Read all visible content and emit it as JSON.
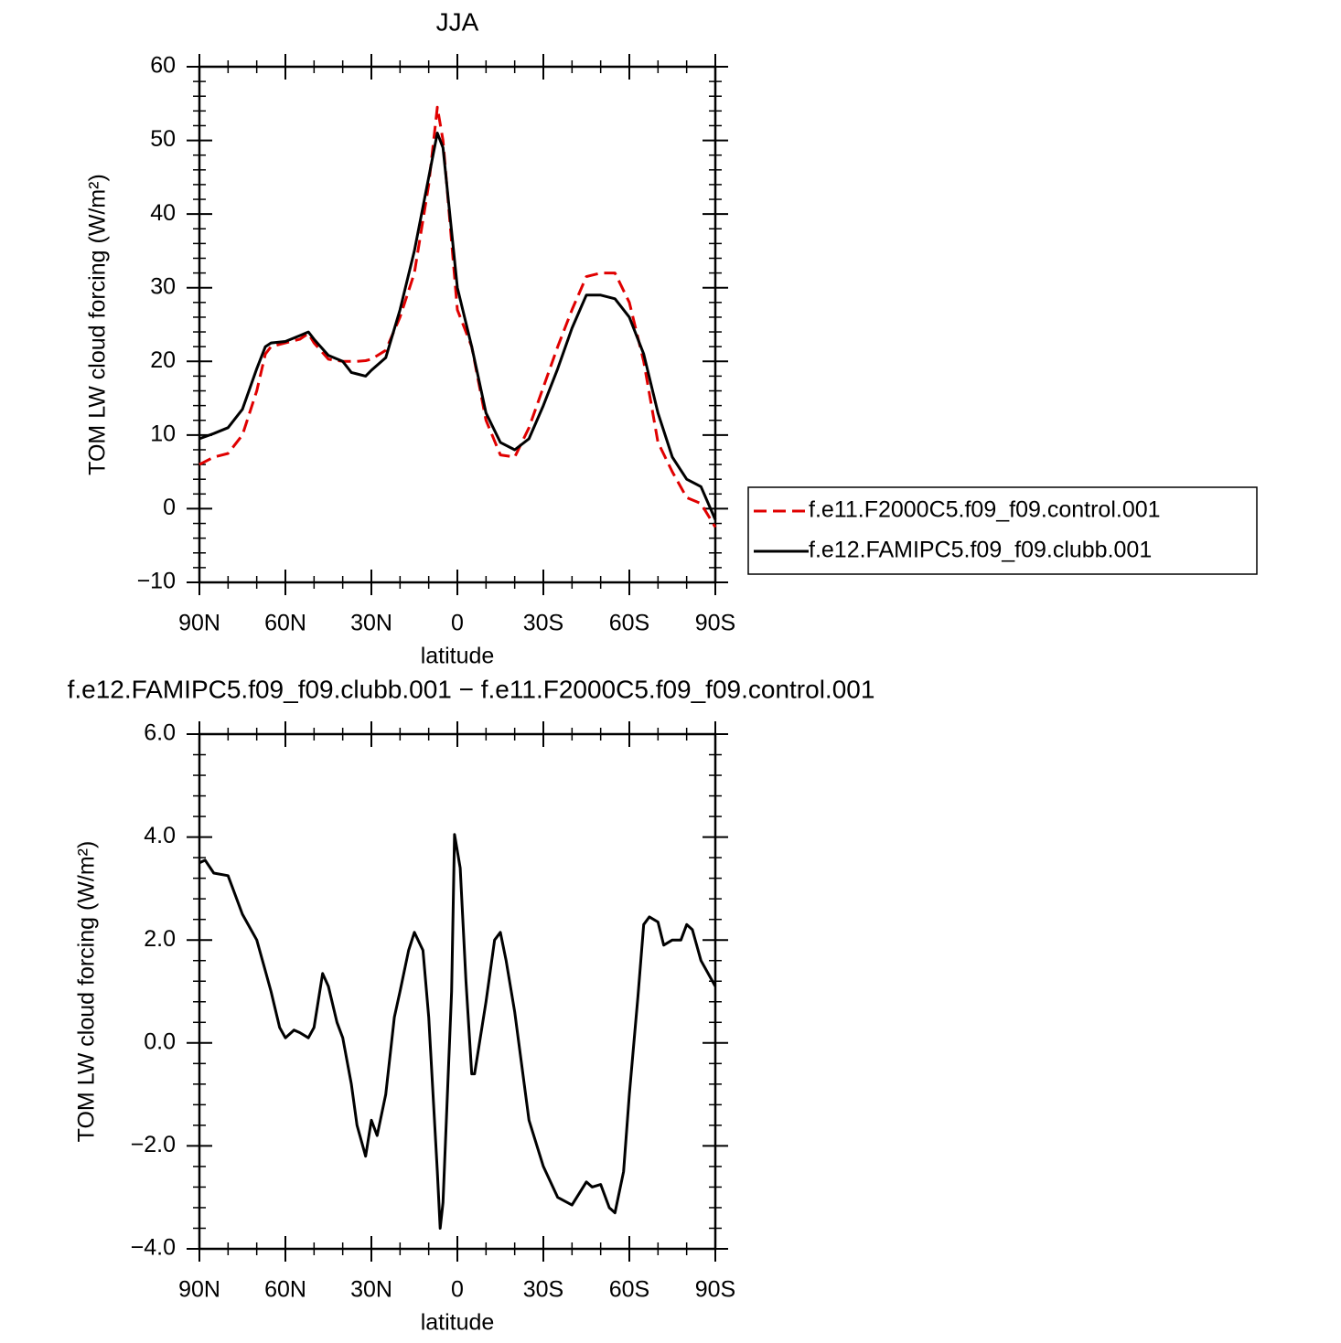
{
  "chart_data": [
    {
      "type": "line",
      "title": "JJA",
      "x_label": "latitude",
      "y_label": "TOM LW cloud forcing (W/m²)",
      "xlim": [
        90,
        -90
      ],
      "xticks": [
        {
          "value": 90,
          "label": "90N"
        },
        {
          "value": 60,
          "label": "60N"
        },
        {
          "value": 30,
          "label": "30N"
        },
        0,
        {
          "value": -30,
          "label": "30S"
        },
        {
          "value": -60,
          "label": "60S"
        },
        {
          "value": -90,
          "label": "90S"
        }
      ],
      "ylim": [
        -10,
        60
      ],
      "yticks": [
        {
          "value": -10,
          "label": "−10"
        },
        0,
        10,
        20,
        30,
        40,
        50,
        60
      ],
      "legend": "right",
      "x": [
        90,
        85,
        80,
        75,
        70,
        67,
        65,
        60,
        55,
        52,
        50,
        45,
        40,
        37,
        35,
        32,
        30,
        25,
        20,
        15,
        10,
        7,
        5,
        0,
        -5,
        -10,
        -15,
        -20,
        -25,
        -30,
        -35,
        -40,
        -45,
        -50,
        -55,
        -60,
        -65,
        -70,
        -75,
        -80,
        -85,
        -90
      ],
      "series": [
        {
          "name": "f.e11.F2000C5.f09_f09.control.001",
          "color": "#e00000",
          "dash": true,
          "values": [
            6,
            7,
            7.5,
            10,
            16,
            21,
            22,
            22.5,
            23,
            23.8,
            22.5,
            20.3,
            20,
            20,
            20,
            20.1,
            20.3,
            21.5,
            26,
            32,
            44,
            54.5,
            50,
            27,
            22,
            12,
            7.3,
            7,
            11,
            16.5,
            22,
            27,
            31.5,
            32,
            32,
            28,
            20,
            9,
            5,
            1.5,
            0.7,
            -2.5
          ]
        },
        {
          "name": "f.e12.FAMIPC5.f09_f09.clubb.001",
          "color": "#000000",
          "dash": false,
          "values": [
            9.5,
            10.2,
            11,
            13.5,
            19,
            22,
            22.5,
            22.7,
            23.5,
            24,
            23,
            20.8,
            20,
            18.5,
            18.3,
            18,
            18.8,
            20.5,
            27,
            35,
            45,
            51,
            49,
            30,
            22,
            13,
            9,
            8,
            9.5,
            14,
            19,
            24.5,
            29,
            29,
            28.5,
            26,
            21,
            13,
            7,
            4,
            3,
            -1.5
          ]
        }
      ]
    },
    {
      "type": "line",
      "title": "f.e12.FAMIPC5.f09_f09.clubb.001 − f.e11.F2000C5.f09_f09.control.001",
      "x_label": "latitude",
      "y_label": "TOM LW cloud forcing (W/m²)",
      "xlim": [
        90,
        -90
      ],
      "xticks": [
        {
          "value": 90,
          "label": "90N"
        },
        {
          "value": 60,
          "label": "60N"
        },
        {
          "value": 30,
          "label": "30N"
        },
        0,
        {
          "value": -30,
          "label": "30S"
        },
        {
          "value": -60,
          "label": "60S"
        },
        {
          "value": -90,
          "label": "90S"
        }
      ],
      "ylim": [
        -4,
        6
      ],
      "yticks": [
        {
          "value": -4,
          "label": "−4.0"
        },
        {
          "value": -2,
          "label": "−2.0"
        },
        {
          "value": 0,
          "label": "0.0"
        },
        {
          "value": 2,
          "label": "2.0"
        },
        {
          "value": 4,
          "label": "4.0"
        },
        {
          "value": 6,
          "label": "6.0"
        }
      ],
      "x": [
        90,
        88,
        85,
        80,
        75,
        70,
        67,
        65,
        62,
        60,
        57,
        55,
        52,
        50,
        47,
        45,
        42,
        40,
        37,
        35,
        32,
        30,
        28,
        25,
        22,
        20,
        17,
        15,
        12,
        10,
        7,
        6,
        5,
        2,
        1,
        -1,
        -3,
        -5,
        -6,
        -10,
        -13,
        -15,
        -17,
        -20,
        -25,
        -30,
        -35,
        -40,
        -45,
        -47,
        -50,
        -53,
        -55,
        -58,
        -60,
        -63,
        -65,
        -67,
        -70,
        -72,
        -75,
        -78,
        -80,
        -82,
        -85,
        -90
      ],
      "series": [
        {
          "color": "#000000",
          "dash": false,
          "values": [
            3.5,
            3.55,
            3.3,
            3.25,
            2.5,
            2.0,
            1.4,
            1.0,
            0.3,
            0.1,
            0.25,
            0.2,
            0.1,
            0.3,
            1.35,
            1.1,
            0.4,
            0.1,
            -0.8,
            -1.6,
            -2.2,
            -1.5,
            -1.8,
            -1.0,
            0.5,
            1.0,
            1.8,
            2.15,
            1.8,
            0.5,
            -2.5,
            -3.6,
            -3.1,
            1.0,
            4.05,
            3.4,
            1.2,
            -0.6,
            -0.6,
            0.8,
            2.0,
            2.15,
            1.6,
            0.6,
            -1.5,
            -2.4,
            -3.0,
            -3.15,
            -2.7,
            -2.8,
            -2.75,
            -3.2,
            -3.3,
            -2.5,
            -1.0,
            0.9,
            2.3,
            2.45,
            2.35,
            1.9,
            2.0,
            2.0,
            2.3,
            2.2,
            1.6,
            1.1
          ]
        }
      ]
    }
  ]
}
